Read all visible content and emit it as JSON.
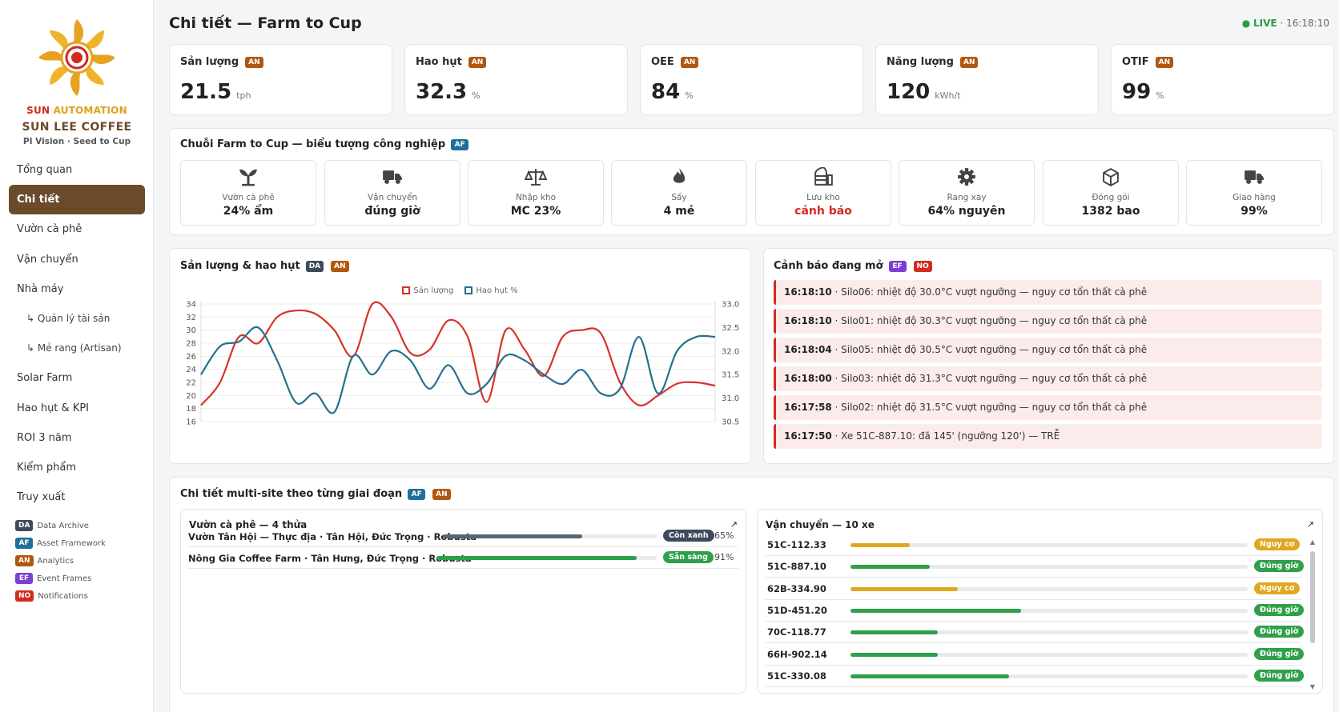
{
  "brand": {
    "line1_a": "SUN",
    "line1_b": "AUTOMATION",
    "line2": "SUN LEE COFFEE",
    "line3": "PI Vision · Seed to Cup"
  },
  "nav": [
    {
      "label": "Tổng quan"
    },
    {
      "label": "Chi tiết",
      "active": true
    },
    {
      "label": "Vườn cà phê"
    },
    {
      "label": "Vận chuyển"
    },
    {
      "label": "Nhà máy"
    },
    {
      "label": "↳ Quản lý tài sản",
      "sub": true
    },
    {
      "label": "↳ Mẻ rang (Artisan)",
      "sub": true
    },
    {
      "label": "Solar Farm"
    },
    {
      "label": "Hao hụt & KPI"
    },
    {
      "label": "ROI 3 năm"
    },
    {
      "label": "Kiểm phẩm"
    },
    {
      "label": "Truy xuất"
    }
  ],
  "legend": [
    {
      "tag": "DA",
      "label": "Data Archive"
    },
    {
      "tag": "AF",
      "label": "Asset Framework"
    },
    {
      "tag": "AN",
      "label": "Analytics"
    },
    {
      "tag": "EF",
      "label": "Event Frames"
    },
    {
      "tag": "NO",
      "label": "Notifications"
    }
  ],
  "header": {
    "title": "Chi tiết — Farm to Cup",
    "live": "LIVE",
    "time": "· 16:18:10"
  },
  "kpis": [
    {
      "label": "Sản lượng",
      "tag": "AN",
      "value": "21.5",
      "unit": "tph"
    },
    {
      "label": "Hao hụt",
      "tag": "AN",
      "value": "32.3",
      "unit": "%"
    },
    {
      "label": "OEE",
      "tag": "AN",
      "value": "84",
      "unit": "%"
    },
    {
      "label": "Năng lượng",
      "tag": "AN",
      "value": "120",
      "unit": "kWh/t"
    },
    {
      "label": "OTIF",
      "tag": "AN",
      "value": "99",
      "unit": "%"
    }
  ],
  "chain": {
    "title": "Chuỗi Farm to Cup — biểu tượng công nghiệp",
    "tag": "AF",
    "stages": [
      {
        "icon": "sprout-icon",
        "label": "Vườn cà phê",
        "value": "24% ẩm"
      },
      {
        "icon": "truck-icon",
        "label": "Vận chuyển",
        "value": "đúng giờ"
      },
      {
        "icon": "scale-icon",
        "label": "Nhập kho",
        "value": "MC 23%"
      },
      {
        "icon": "flame-icon",
        "label": "Sấy",
        "value": "4 mẻ"
      },
      {
        "icon": "silo-icon",
        "label": "Lưu kho",
        "value": "cảnh báo",
        "warn": true
      },
      {
        "icon": "gear-icon",
        "label": "Rang xay",
        "value": "64% nguyên"
      },
      {
        "icon": "box-icon",
        "label": "Đóng gói",
        "value": "1382 bao"
      },
      {
        "icon": "delivery-truck-icon",
        "label": "Giao hàng",
        "value": "99%"
      }
    ]
  },
  "chart_section": {
    "title": "Sản lượng & hao hụt",
    "tags": [
      "DA",
      "AN"
    ]
  },
  "chart_data": {
    "type": "line",
    "series": [
      {
        "name": "Sản lượng",
        "color": "#d8322a",
        "axis": "left",
        "values": [
          18.5,
          22,
          29,
          28,
          32,
          33,
          32.5,
          30,
          26,
          34,
          32,
          26.5,
          27,
          31.5,
          29,
          19,
          30,
          27,
          23,
          29,
          30,
          29.5,
          22,
          18.5,
          20,
          21.8,
          22,
          21.5
        ]
      },
      {
        "name": "Hao hụt %",
        "color": "#23708e",
        "axis": "right",
        "values": [
          31.5,
          32.1,
          32.2,
          32.5,
          31.8,
          30.9,
          31.1,
          30.7,
          31.9,
          31.5,
          32.0,
          31.8,
          31.2,
          31.7,
          31.1,
          31.3,
          31.9,
          31.8,
          31.5,
          31.3,
          31.6,
          31.1,
          31.2,
          32.3,
          31.1,
          32.0,
          32.3,
          32.3
        ]
      }
    ],
    "left_axis": {
      "ticks": [
        "34",
        "32",
        "30",
        "28",
        "26",
        "24",
        "22",
        "20",
        "18",
        "16"
      ],
      "min": 16,
      "max": 34
    },
    "right_axis": {
      "ticks": [
        "33.0",
        "32.5",
        "32.0",
        "31.5",
        "31.0",
        "30.5"
      ],
      "min": 30.5,
      "max": 33.0
    },
    "grid": true,
    "legend_position": "top"
  },
  "alerts_section": {
    "title": "Cảnh báo đang mở",
    "tags": [
      "EF",
      "NO"
    ],
    "items": [
      {
        "time": "16:18:10",
        "text": " · Silo06: nhiệt độ 30.0°C vượt ngưỡng — nguy cơ tổn thất cà phê"
      },
      {
        "time": "16:18:10",
        "text": " · Silo01: nhiệt độ 30.3°C vượt ngưỡng — nguy cơ tổn thất cà phê"
      },
      {
        "time": "16:18:04",
        "text": " · Silo05: nhiệt độ 30.5°C vượt ngưỡng — nguy cơ tổn thất cà phê"
      },
      {
        "time": "16:18:00",
        "text": " · Silo03: nhiệt độ 31.3°C vượt ngưỡng — nguy cơ tổn thất cà phê"
      },
      {
        "time": "16:17:58",
        "text": " · Silo02: nhiệt độ 31.5°C vượt ngưỡng — nguy cơ tổn thất cà phê"
      },
      {
        "time": "16:17:50",
        "text": " · Xe 51C-887.10: đã 145' (ngưỡng 120') — TRỄ"
      }
    ]
  },
  "multisite": {
    "title": "Chi tiết multi-site theo từng giai đoạn",
    "tags": [
      "AF",
      "AN"
    ],
    "farms": {
      "title": "Vườn cà phê — 4 thửa",
      "expand": "↗",
      "rows": [
        {
          "name": "Vườn Tân Hội — Thực địa · Tân Hội, Đức Trọng · Robusta",
          "progress": 0.65,
          "color": "#5b6570",
          "status": "Còn xanh",
          "status_color": "#3d4a5c",
          "pct": "65%"
        },
        {
          "name": "Nông Gia Coffee Farm · Tân Hưng, Đức Trọng · Robusta",
          "progress": 0.91,
          "color": "#2ea04a",
          "status": "Sẵn sàng",
          "status_color": "#2ea04a",
          "pct": "91%"
        }
      ]
    },
    "transport": {
      "title": "Vận chuyển — 10 xe",
      "expand": "↗",
      "rows": [
        {
          "plate": "51C-112.33",
          "progress": 0.15,
          "color": "#e0a820",
          "status": "Nguy cơ",
          "status_color": "#e0a820"
        },
        {
          "plate": "51C-887.10",
          "progress": 0.2,
          "color": "#2ea04a",
          "status": "Đúng giờ",
          "status_color": "#2ea04a"
        },
        {
          "plate": "62B-334.90",
          "progress": 0.27,
          "color": "#e0a820",
          "status": "Nguy cơ",
          "status_color": "#e0a820"
        },
        {
          "plate": "51D-451.20",
          "progress": 0.43,
          "color": "#2ea04a",
          "status": "Đúng giờ",
          "status_color": "#2ea04a"
        },
        {
          "plate": "70C-118.77",
          "progress": 0.22,
          "color": "#2ea04a",
          "status": "Đúng giờ",
          "status_color": "#2ea04a"
        },
        {
          "plate": "66H-902.14",
          "progress": 0.22,
          "color": "#2ea04a",
          "status": "Đúng giờ",
          "status_color": "#2ea04a"
        },
        {
          "plate": "51C-330.08",
          "progress": 0.4,
          "color": "#2ea04a",
          "status": "Đúng giờ",
          "status_color": "#2ea04a"
        }
      ]
    }
  }
}
